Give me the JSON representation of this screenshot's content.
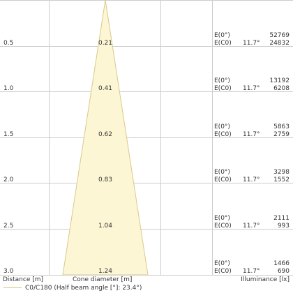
{
  "chart_data": {
    "type": "diagram",
    "rows": [
      {
        "distance": "0.5",
        "diameter": "0.21",
        "e0_label": "E(0°)",
        "ec0_label": "E(C0)",
        "angle": "11.7°",
        "e0_value": "52769",
        "ec0_value": "24832"
      },
      {
        "distance": "1.0",
        "diameter": "0.41",
        "e0_label": "E(0°)",
        "ec0_label": "E(C0)",
        "angle": "11.7°",
        "e0_value": "13192",
        "ec0_value": "6208"
      },
      {
        "distance": "1.5",
        "diameter": "0.62",
        "e0_label": "E(0°)",
        "ec0_label": "E(C0)",
        "angle": "11.7°",
        "e0_value": "5863",
        "ec0_value": "2759"
      },
      {
        "distance": "2.0",
        "diameter": "0.83",
        "e0_label": "E(0°)",
        "ec0_label": "E(C0)",
        "angle": "11.7°",
        "e0_value": "3298",
        "ec0_value": "1552"
      },
      {
        "distance": "2.5",
        "diameter": "1.04",
        "e0_label": "E(0°)",
        "ec0_label": "E(C0)",
        "angle": "11.7°",
        "e0_value": "2111",
        "ec0_value": "993"
      },
      {
        "distance": "3.0",
        "diameter": "1.24",
        "e0_label": "E(0°)",
        "ec0_label": "E(C0)",
        "angle": "11.7°",
        "e0_value": "1466",
        "ec0_value": "690"
      }
    ],
    "headers": {
      "distance": "Distance [m]",
      "diameter": "Cone diameter [m]",
      "illuminance": "Illuminance [lx]"
    },
    "legend": "C0/C180 (Half beam angle [°]: 23.4°)",
    "half_beam_angle_deg": 23.4,
    "max_distance": 3.0,
    "colors": {
      "cone_fill": "#fdf6d5",
      "cone_stroke": "#d8c98a",
      "grid": "#cccccc",
      "text": "#333333"
    }
  }
}
